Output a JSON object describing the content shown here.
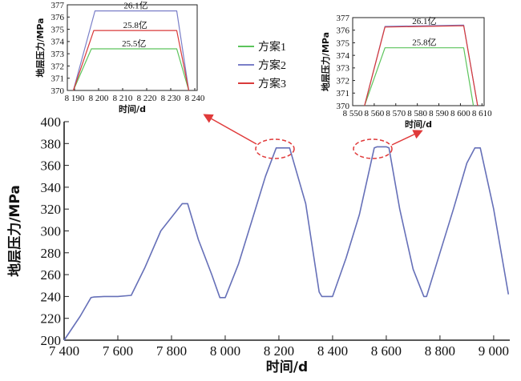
{
  "chart_data": [
    {
      "type": "line",
      "xlabel": "时间/d",
      "ylabel": "地层压力/MPa",
      "xlim": [
        7400,
        9060
      ],
      "ylim": [
        200,
        400
      ],
      "xticks": [
        7400,
        7600,
        7800,
        8000,
        8200,
        8400,
        8600,
        8800,
        9000
      ],
      "xtick_labels": [
        "7 400",
        "7 600",
        "7 800",
        "8 000",
        "8 200",
        "8 400",
        "8 600",
        "8 800",
        "9 000"
      ],
      "yticks": [
        200,
        220,
        240,
        260,
        280,
        300,
        320,
        340,
        360,
        380,
        400
      ],
      "ytick_labels": [
        "200",
        "220",
        "240",
        "260",
        "280",
        "300",
        "320",
        "340",
        "360",
        "380",
        "400"
      ],
      "series_color": "#6670b8",
      "x": [
        7400,
        7460,
        7500,
        7510,
        7550,
        7600,
        7650,
        7700,
        7760,
        7840,
        7860,
        7900,
        7950,
        7980,
        8000,
        8050,
        8100,
        8150,
        8190,
        8200,
        8230,
        8240,
        8300,
        8350,
        8360,
        8400,
        8450,
        8500,
        8555,
        8566,
        8600,
        8610,
        8650,
        8700,
        8740,
        8750,
        8800,
        8850,
        8900,
        8930,
        8950,
        9000,
        9055
      ],
      "y": [
        200,
        222,
        239,
        239.5,
        240,
        240,
        241,
        266,
        300,
        325,
        325,
        292,
        260,
        239,
        239,
        270,
        310,
        350,
        376,
        376,
        376,
        376,
        325,
        244,
        240,
        240,
        275,
        315,
        376,
        377,
        377,
        376,
        320,
        265,
        240,
        240,
        280,
        320,
        362,
        376,
        376,
        320,
        242
      ]
    },
    {
      "type": "line",
      "xlabel": "时间/d",
      "ylabel": "地层压力/MPa",
      "xlim": [
        8187,
        8241
      ],
      "ylim": [
        370,
        377
      ],
      "xticks": [
        8190,
        8200,
        8210,
        8220,
        8230,
        8240
      ],
      "xtick_labels": [
        "8 190",
        "8 200",
        "8 210",
        "8 220",
        "8 230",
        "8 240"
      ],
      "yticks": [
        370,
        371,
        372,
        373,
        374,
        375,
        376,
        377
      ],
      "ytick_labels": [
        "370",
        "371",
        "372",
        "373",
        "374",
        "375",
        "376",
        "377"
      ],
      "series": [
        {
          "name": "方案1",
          "color": "#5cc45c",
          "x": [
            8189.5,
            8197,
            8232.5,
            8237.5
          ],
          "y": [
            370,
            373.4,
            373.4,
            370
          ],
          "label": "25.5亿"
        },
        {
          "name": "方案2",
          "color": "#7a7fc8",
          "x": [
            8189.5,
            8198.5,
            8232.5,
            8237.5
          ],
          "y": [
            370,
            376.5,
            376.5,
            370
          ],
          "label": "26.1亿"
        },
        {
          "name": "方案3",
          "color": "#d93a3a",
          "x": [
            8189.5,
            8198,
            8232.5,
            8237.5
          ],
          "y": [
            370,
            374.9,
            374.9,
            370
          ],
          "label": "25.8亿"
        }
      ]
    },
    {
      "type": "line",
      "xlabel": "时间/d",
      "ylabel": "地层压力/MPa",
      "xlim": [
        8550,
        8611
      ],
      "ylim": [
        370,
        377
      ],
      "xticks": [
        8550,
        8560,
        8570,
        8580,
        8590,
        8600,
        8610
      ],
      "xtick_labels": [
        "8 550",
        "8 560",
        "8 570",
        "8 580",
        "8 590",
        "8 600",
        "8 610"
      ],
      "yticks": [
        370,
        371,
        372,
        373,
        374,
        375,
        376,
        377
      ],
      "ytick_labels": [
        "370",
        "371",
        "372",
        "373",
        "374",
        "375",
        "376",
        "377"
      ],
      "series": [
        {
          "name": "方案1",
          "color": "#5cc45c",
          "x": [
            8555.5,
            8565,
            8601.5,
            8606
          ],
          "y": [
            370,
            374.6,
            374.6,
            370
          ],
          "label": "25.8亿"
        },
        {
          "name": "方案2",
          "color": "#7a7fc8",
          "x": [
            8555.5,
            8565,
            8601.5,
            8608
          ],
          "y": [
            370,
            376.3,
            376.4,
            370
          ],
          "label": "26.1亿"
        },
        {
          "name": "方案3",
          "color": "#d93a3a",
          "x": [
            8555.5,
            8565,
            8601.5,
            8608
          ],
          "y": [
            370,
            376.25,
            376.35,
            370
          ],
          "label": ""
        }
      ]
    }
  ],
  "legend": [
    {
      "name": "方案1",
      "color": "#5cc45c"
    },
    {
      "name": "方案2",
      "color": "#7a7fc8"
    },
    {
      "name": "方案3",
      "color": "#d93a3a"
    }
  ],
  "colors": {
    "highlight": "#e03a3a"
  }
}
